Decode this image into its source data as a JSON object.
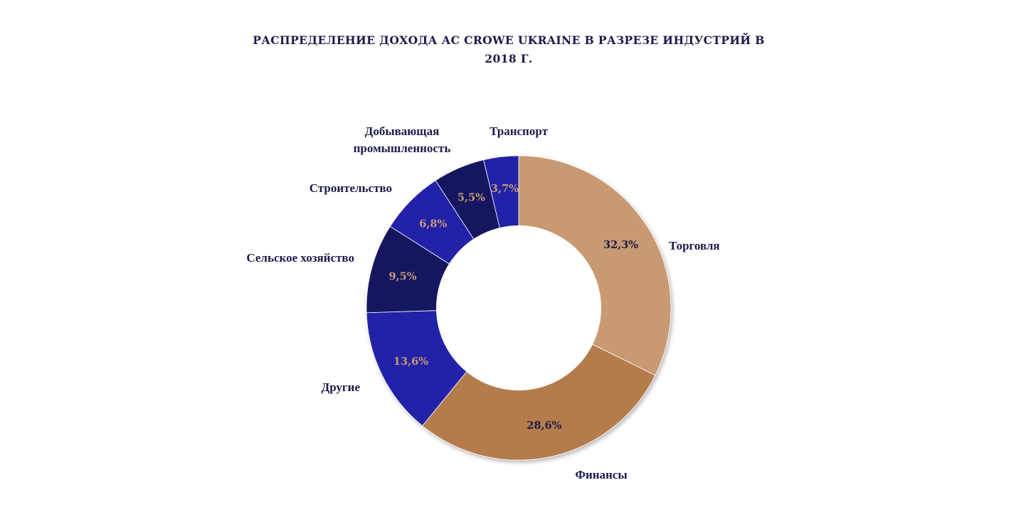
{
  "chart_data": {
    "type": "pie",
    "style": "donut",
    "title": "РАСПРЕДЕЛЕНИЕ ДОХОДА АС CROWE UKRAINE В РАЗРЕЗЕ ИНДУСТРИЙ В 2018 Г.",
    "slices": [
      {
        "label": "Торговля",
        "value": 32.3,
        "value_label": "32,3%",
        "color": "#c89a73",
        "value_color": "#1c1a4a"
      },
      {
        "label": "Финансы",
        "value": 28.6,
        "value_label": "28,6%",
        "color": "#b57b4c",
        "value_color": "#1c1a4a"
      },
      {
        "label": "Другие",
        "value": 13.6,
        "value_label": "13,6%",
        "color": "#2020a8",
        "value_color": "#c89a73"
      },
      {
        "label": "Сельское хозяйство",
        "value": 9.5,
        "value_label": "9,5%",
        "color": "#181460",
        "value_color": "#c89a73"
      },
      {
        "label": "Строительство",
        "value": 6.8,
        "value_label": "6,8%",
        "color": "#2020a8",
        "value_color": "#c89a73"
      },
      {
        "label": "Добывающая промышленность",
        "value": 5.5,
        "value_label": "5,5%",
        "color": "#181460",
        "value_color": "#c89a73"
      },
      {
        "label": "Транспорт",
        "value": 3.7,
        "value_label": "3,7%",
        "color": "#2020a8",
        "value_color": "#c89a73"
      }
    ],
    "legend": "none",
    "labels_placement": "outside"
  },
  "colors": {
    "title": "#1c1a4a",
    "background": "#ffffff"
  }
}
